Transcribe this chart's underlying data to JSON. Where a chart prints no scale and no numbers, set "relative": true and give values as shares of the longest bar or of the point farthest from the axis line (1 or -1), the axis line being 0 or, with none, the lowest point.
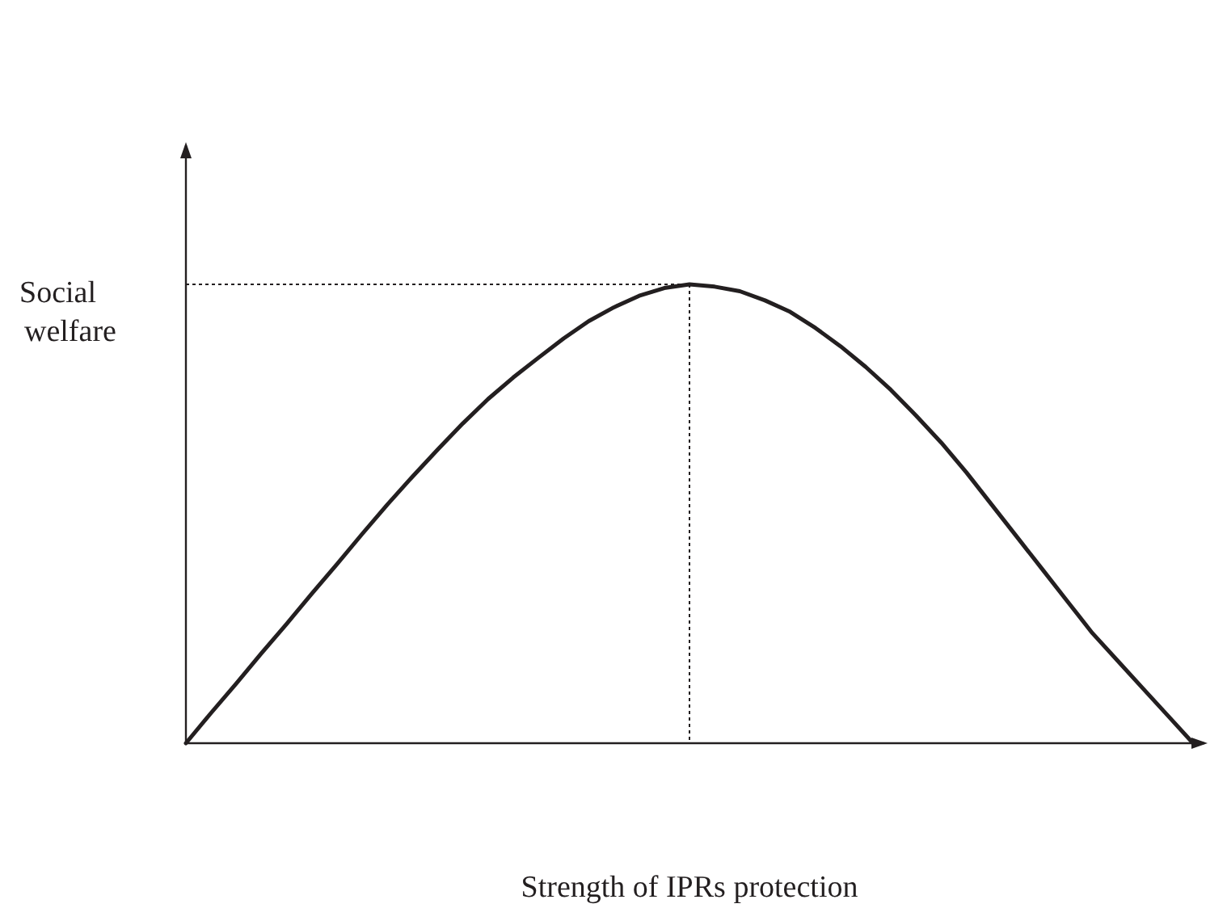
{
  "chart_data": {
    "type": "line",
    "relative": true,
    "xlabel": "Strength of IPRs protection",
    "ylabel": "Social\nwelfare",
    "categories": [
      null,
      null,
      null,
      null,
      null,
      null,
      null,
      null,
      null,
      null,
      null,
      null,
      null,
      null,
      null,
      null,
      null,
      null,
      null,
      null,
      null,
      null,
      null,
      null,
      null,
      null,
      null,
      null,
      null,
      null,
      null,
      null,
      null,
      null,
      null,
      null,
      null,
      null,
      null,
      null,
      null
    ],
    "line_style": "solid",
    "series": [
      {
        "color": "#231f20",
        "values": [
          0,
          0.066,
          0.13,
          0.196,
          0.26,
          0.326,
          0.39,
          0.456,
          0.52,
          0.581,
          0.64,
          0.697,
          0.75,
          0.797,
          0.84,
          0.882,
          0.92,
          0.95,
          0.975,
          0.992,
          1,
          0.995,
          0.985,
          0.965,
          0.94,
          0.905,
          0.865,
          0.82,
          0.77,
          0.714,
          0.655,
          0.59,
          0.52,
          0.45,
          0.38,
          0.31,
          0.24,
          0.18,
          0.12,
          0.06,
          0
        ]
      }
    ],
    "ref_lines": [
      {
        "axis": "y",
        "value": 1,
        "line_style": "dotted",
        "color": "#231f20"
      }
    ]
  }
}
